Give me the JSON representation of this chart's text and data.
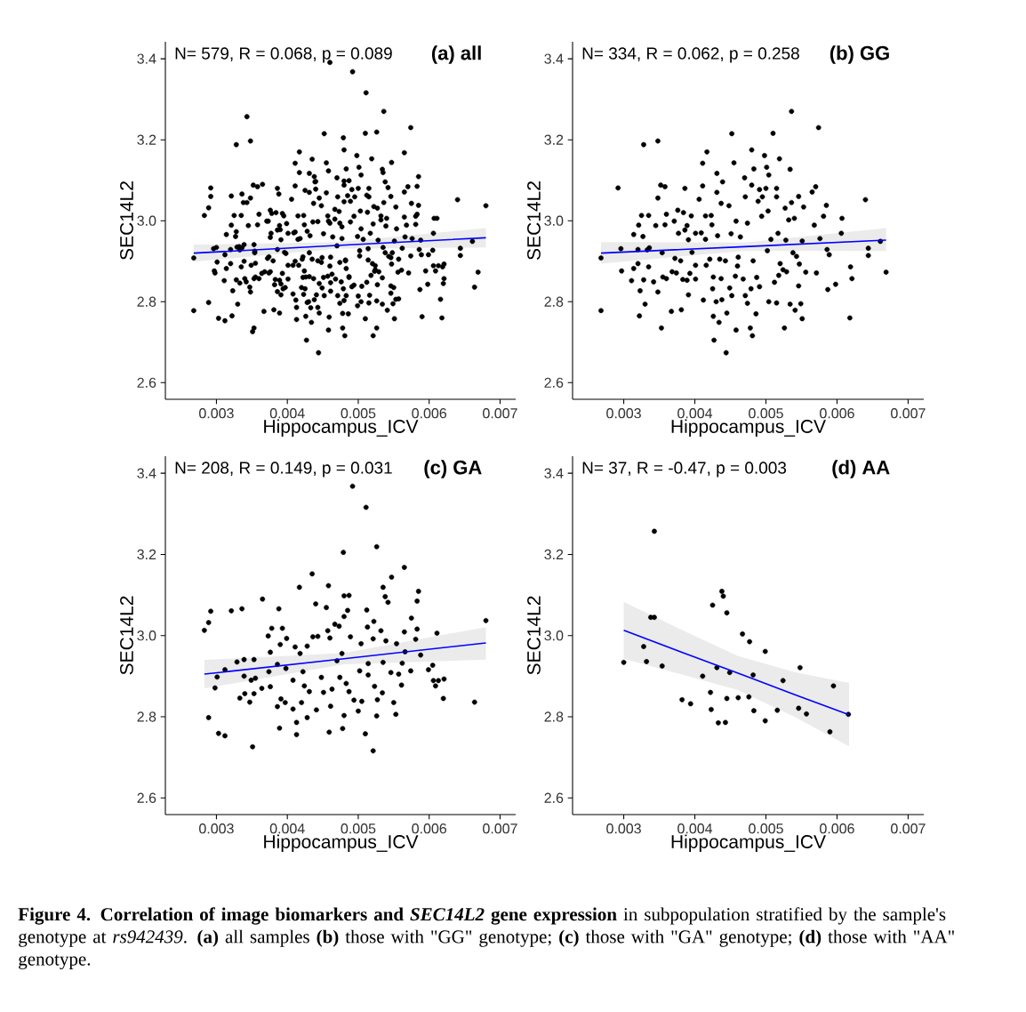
{
  "chart_data": [
    {
      "type": "scatter",
      "title": "(a) all",
      "xlabel": "Hippocampus_ICV",
      "ylabel": "SEC14L2",
      "annotations": [
        "N= 579, R = 0.068, p = 0.089"
      ],
      "marker": "circle",
      "xlim": [
        0.00228,
        0.00722
      ],
      "ylim": [
        2.559,
        3.442
      ],
      "xticks": [
        {
          "value": 0.003,
          "label": "0.003"
        },
        {
          "value": 0.004,
          "label": "0.004"
        },
        {
          "value": 0.005,
          "label": "0.005"
        },
        {
          "value": 0.006,
          "label": "0.006"
        },
        {
          "value": 0.007,
          "label": "0.007"
        }
      ],
      "yticks": [
        {
          "value": 2.6,
          "label": "2.6"
        },
        {
          "value": 2.8,
          "label": "2.8"
        },
        {
          "value": 3.0,
          "label": "3.0"
        },
        {
          "value": 3.2,
          "label": "3.2"
        },
        {
          "value": 3.4,
          "label": "3.4"
        }
      ],
      "series": [
        {
          "type": "scatter",
          "color": "#000000",
          "x": [
            0.00268,
            0.00268,
            0.00292,
            0.00296,
            0.00297,
            0.00311,
            0.00314,
            0.00314,
            0.0032,
            0.0032,
            0.00321,
            0.00322,
            0.00323,
            0.00325,
            0.00327,
            0.00328,
            0.00328,
            0.0033,
            0.00333,
            0.00335,
            0.00335,
            0.00336,
            0.00342,
            0.00345,
            0.00348,
            0.00348,
            0.00348,
            0.00352,
            0.00353,
            0.00354,
            0.00355,
            0.00358,
            0.00358,
            0.0036,
            0.0036,
            0.00367,
            0.00368,
            0.00371,
            0.00372,
            0.00374,
            0.00376,
            0.00377,
            0.0038,
            0.00381,
            0.00383,
            0.00384,
            0.00386,
            0.00386,
            0.00389,
            0.00389,
            0.00391,
            0.00391,
            0.00393,
            0.00395,
            0.00396,
            0.00401,
            0.00401,
            0.00401,
            0.00406,
            0.00409,
            0.00411,
            0.00411,
            0.00412,
            0.00415,
            0.00415,
            0.00416,
            0.00417,
            0.00421,
            0.00423,
            0.00424,
            0.00425,
            0.00426,
            0.00426,
            0.00427,
            0.0043,
            0.00431,
            0.00431,
            0.00432,
            0.00434,
            0.00435,
            0.00437,
            0.00437,
            0.00438,
            0.00439,
            0.00443,
            0.00444,
            0.00445,
            0.00448,
            0.00449,
            0.00451,
            0.00452,
            0.00452,
            0.00455,
            0.00457,
            0.00458,
            0.00458,
            0.0046,
            0.00461,
            0.00464,
            0.00468,
            0.0047,
            0.00471,
            0.00471,
            0.00474,
            0.00474,
            0.00478,
            0.00479,
            0.0048,
            0.0048,
            0.00481,
            0.00482,
            0.00483,
            0.00486,
            0.00487,
            0.00489,
            0.00491,
            0.00491,
            0.00494,
            0.00495,
            0.00498,
            0.005,
            0.00501,
            0.00502,
            0.00503,
            0.00504,
            0.00504,
            0.00507,
            0.0051,
            0.00512,
            0.00515,
            0.00515,
            0.00515,
            0.00517,
            0.00518,
            0.00519,
            0.0052,
            0.00524,
            0.00526,
            0.00527,
            0.00528,
            0.00529,
            0.00532,
            0.00534,
            0.00534,
            0.00536,
            0.00536,
            0.00538,
            0.0054,
            0.00541,
            0.00543,
            0.00546,
            0.00546,
            0.00547,
            0.00549,
            0.00551,
            0.00551,
            0.00553,
            0.00556,
            0.00565,
            0.00568,
            0.0057,
            0.00571,
            0.00574,
            0.00576,
            0.00581,
            0.00585,
            0.00586,
            0.00587,
            0.00589,
            0.00598,
            0.00606,
            0.00607,
            0.00619,
            0.00618,
            0.00621,
            0.0064,
            0.00644,
            0.00644,
            0.00661,
            0.00669,
            0.00283,
            0.00289,
            0.00292,
            0.00289,
            0.00298,
            0.00301,
            0.00303,
            0.00312,
            0.00312,
            0.00321,
            0.00329,
            0.00333,
            0.00336,
            0.00339,
            0.00339,
            0.0034,
            0.00347,
            0.00349,
            0.00351,
            0.00353,
            0.00353,
            0.00355,
            0.00364,
            0.00365,
            0.00373,
            0.00374,
            0.00376,
            0.00376,
            0.00378,
            0.00386,
            0.00386,
            0.00388,
            0.00389,
            0.00391,
            0.0039,
            0.00393,
            0.00398,
            0.00397,
            0.00399,
            0.00408,
            0.00408,
            0.00411,
            0.00413,
            0.00413,
            0.00417,
            0.00418,
            0.0042,
            0.00422,
            0.00424,
            0.00428,
            0.00428,
            0.00431,
            0.00435,
            0.00436,
            0.0044,
            0.00441,
            0.00443,
            0.00448,
            0.00451,
            0.00455,
            0.00457,
            0.00458,
            0.00459,
            0.0046,
            0.00461,
            0.00463,
            0.00467,
            0.0047,
            0.00473,
            0.00474,
            0.00477,
            0.00478,
            0.00479,
            0.0048,
            0.0048,
            0.0048,
            0.00483,
            0.00485,
            0.00487,
            0.00487,
            0.00489,
            0.00492,
            0.00494,
            0.005,
            0.00502,
            0.00504,
            0.00505,
            0.0051,
            0.00511,
            0.00512,
            0.00513,
            0.00514,
            0.00514,
            0.00521,
            0.00521,
            0.00522,
            0.00523,
            0.00526,
            0.00526,
            0.00527,
            0.00532,
            0.00534,
            0.00535,
            0.00535,
            0.00538,
            0.00539,
            0.00542,
            0.00546,
            0.00547,
            0.0055,
            0.00553,
            0.00554,
            0.00557,
            0.00561,
            0.00562,
            0.00565,
            0.00565,
            0.00566,
            0.00574,
            0.00575,
            0.00581,
            0.00583,
            0.00583,
            0.00585,
            0.00588,
            0.00599,
            0.00605,
            0.00606,
            0.00609,
            0.00611,
            0.00613,
            0.0062,
            0.00621,
            0.00664,
            0.0068,
            0.003,
            0.00328,
            0.00332,
            0.00338,
            0.00343,
            0.00343,
            0.00354,
            0.00382,
            0.00394,
            0.00411,
            0.00422,
            0.00423,
            0.00425,
            0.00431,
            0.00433,
            0.00438,
            0.0044,
            0.00443,
            0.00445,
            0.00445,
            0.00449,
            0.00461,
            0.00467,
            0.00476,
            0.00477,
            0.00482,
            0.00483,
            0.00499,
            0.00499,
            0.00516,
            0.00524,
            0.00546,
            0.00548,
            0.00557,
            0.0059,
            0.00595,
            0.00616,
            0.0046
          ],
          "values": [
            2.908,
            2.778,
            3.081,
            2.931,
            2.876,
            2.852,
            2.966,
            2.882,
            2.929,
            2.894,
            2.989,
            2.765,
            2.827,
            3.013,
            2.961,
            3.188,
            2.854,
            2.794,
            2.928,
            3.013,
            2.886,
            2.933,
            2.849,
            2.988,
            3.056,
            3.197,
            2.824,
            3.088,
            2.735,
            2.921,
            2.861,
            3.084,
            2.99,
            3.016,
            2.857,
            2.776,
            2.874,
            2.999,
            2.907,
            2.871,
            3.026,
            2.969,
            2.901,
            2.78,
            2.855,
            3.02,
            2.977,
            3.08,
            2.853,
            2.988,
            2.817,
            2.953,
            2.87,
            3.012,
            2.922,
            2.89,
            2.856,
            2.969,
            3.053,
            2.97,
            3.086,
            3.142,
            2.804,
            3.012,
            2.954,
            2.89,
            3.17,
            2.905,
            3.013,
            2.99,
            2.832,
            2.861,
            2.764,
            2.705,
            2.8,
            3.117,
            3.07,
            2.963,
            2.749,
            2.905,
            3.043,
            2.857,
            2.805,
            3.096,
            2.901,
            2.674,
            2.772,
            3.037,
            2.834,
            2.968,
            2.815,
            3.215,
            3.143,
            2.863,
            2.73,
            2.999,
            2.888,
            2.91,
            2.96,
            2.856,
            3.106,
            3.059,
            2.815,
            2.994,
            2.796,
            2.735,
            2.832,
            3.175,
            3.088,
            2.716,
            2.901,
            3.128,
            2.77,
            2.86,
            3.048,
            3.077,
            2.837,
            3.011,
            3.059,
            3.161,
            3.08,
            3.132,
            2.926,
            3.024,
            2.8,
            3.113,
            2.954,
            3.216,
            2.848,
            3.08,
            2.797,
            3.059,
            2.969,
            2.865,
            3.153,
            2.894,
            2.879,
            2.735,
            3.031,
            2.952,
            2.874,
            3.002,
            3.127,
            2.794,
            3.27,
            3.045,
            2.921,
            3.006,
            2.779,
            2.912,
            3.06,
            2.839,
            2.893,
            2.795,
            2.758,
            2.95,
            3.034,
            2.873,
            3.071,
            2.989,
            3.084,
            2.871,
            3.23,
            2.956,
            3.011,
            3.038,
            2.929,
            2.83,
            2.916,
            2.843,
            2.969,
            3.006,
            2.886,
            2.76,
            2.857,
            3.052,
            2.932,
            2.914,
            2.949,
            2.873,
            3.013,
            3.032,
            3.06,
            2.798,
            2.871,
            2.898,
            2.759,
            2.753,
            2.916,
            3.061,
            2.935,
            2.846,
            3.066,
            2.941,
            2.9,
            2.857,
            2.836,
            2.89,
            2.726,
            2.941,
            2.857,
            2.895,
            2.87,
            3.09,
            2.999,
            2.911,
            2.874,
            2.959,
            3.018,
            2.929,
            2.825,
            3.066,
            2.772,
            2.844,
            2.978,
            3.018,
            2.919,
            2.835,
            2.993,
            2.819,
            2.89,
            2.972,
            2.786,
            2.756,
            3.119,
            2.956,
            2.835,
            2.911,
            2.876,
            2.974,
            2.798,
            2.862,
            3.152,
            2.997,
            3.078,
            2.817,
            2.998,
            2.897,
            2.86,
            3.069,
            3.012,
            3.123,
            2.762,
            2.994,
            2.826,
            2.868,
            3.028,
            2.938,
            3.023,
            2.897,
            2.956,
            2.771,
            3.205,
            3.098,
            2.803,
            3.047,
            2.882,
            3.062,
            3.099,
            2.862,
            2.997,
            3.368,
            2.841,
            2.814,
            2.913,
            2.98,
            2.838,
            2.758,
            3.316,
            3.063,
            3.021,
            2.931,
            2.903,
            2.716,
            2.992,
            3.035,
            2.875,
            3.219,
            2.802,
            2.842,
            3.012,
            2.859,
            3.119,
            2.934,
            3.096,
            2.987,
            3.082,
            2.909,
            3.144,
            2.835,
            2.806,
            2.98,
            2.905,
            2.878,
            2.932,
            3.168,
            3.009,
            2.96,
            2.913,
            3.043,
            2.991,
            3.085,
            3.016,
            3.109,
            2.952,
            2.916,
            2.927,
            2.889,
            2.876,
            3.006,
            2.889,
            2.845,
            2.893,
            2.836,
            3.037,
            2.934,
            2.973,
            2.936,
            3.045,
            3.045,
            3.257,
            2.925,
            2.842,
            2.832,
            2.9,
            2.86,
            2.818,
            3.075,
            2.921,
            2.785,
            3.109,
            3.097,
            2.786,
            3.056,
            2.845,
            2.909,
            2.847,
            3.004,
            2.849,
            2.985,
            2.903,
            2.815,
            2.961,
            2.79,
            2.816,
            2.889,
            2.821,
            2.921,
            2.807,
            2.763,
            2.876,
            2.806,
            3.391
          ]
        },
        {
          "type": "line",
          "marker": "none",
          "color": "#0000ff",
          "x": [
            0.00268,
            0.0047,
            0.0068
          ],
          "values": [
            2.92,
            2.939,
            2.958
          ],
          "lower": [
            2.899,
            2.931,
            2.934
          ],
          "upper": [
            2.941,
            2.947,
            2.982
          ]
        }
      ]
    },
    {
      "type": "scatter",
      "title": "(b) GG",
      "xlabel": "Hippocampus_ICV",
      "ylabel": "SEC14L2",
      "annotations": [
        "N= 334, R = 0.062, p = 0.258"
      ],
      "marker": "circle",
      "xlim": [
        0.00228,
        0.00722
      ],
      "ylim": [
        2.559,
        3.442
      ],
      "xticks": [
        {
          "value": 0.003,
          "label": "0.003"
        },
        {
          "value": 0.004,
          "label": "0.004"
        },
        {
          "value": 0.005,
          "label": "0.005"
        },
        {
          "value": 0.006,
          "label": "0.006"
        },
        {
          "value": 0.007,
          "label": "0.007"
        }
      ],
      "yticks": [
        {
          "value": 2.6,
          "label": "2.6"
        },
        {
          "value": 2.8,
          "label": "2.8"
        },
        {
          "value": 3.0,
          "label": "3.0"
        },
        {
          "value": 3.2,
          "label": "3.2"
        },
        {
          "value": 3.4,
          "label": "3.4"
        }
      ],
      "series": [
        {
          "type": "scatter",
          "color": "#000000",
          "x": [
            0.00268,
            0.00268,
            0.00292,
            0.00296,
            0.00297,
            0.00311,
            0.00314,
            0.00314,
            0.0032,
            0.0032,
            0.00321,
            0.00322,
            0.00323,
            0.00325,
            0.00327,
            0.00328,
            0.00328,
            0.0033,
            0.00333,
            0.00335,
            0.00335,
            0.00336,
            0.00342,
            0.00345,
            0.00348,
            0.00348,
            0.00348,
            0.00352,
            0.00353,
            0.00354,
            0.00355,
            0.00358,
            0.00358,
            0.0036,
            0.0036,
            0.00367,
            0.00368,
            0.00371,
            0.00372,
            0.00374,
            0.00376,
            0.00377,
            0.0038,
            0.00381,
            0.00383,
            0.00384,
            0.00386,
            0.00386,
            0.00389,
            0.00389,
            0.00391,
            0.00391,
            0.00393,
            0.00395,
            0.00396,
            0.00401,
            0.00401,
            0.00401,
            0.00406,
            0.00409,
            0.00411,
            0.00411,
            0.00412,
            0.00415,
            0.00415,
            0.00416,
            0.00417,
            0.00421,
            0.00423,
            0.00424,
            0.00425,
            0.00426,
            0.00426,
            0.00427,
            0.0043,
            0.00431,
            0.00431,
            0.00432,
            0.00434,
            0.00435,
            0.00437,
            0.00437,
            0.00438,
            0.00439,
            0.00443,
            0.00444,
            0.00445,
            0.00448,
            0.00449,
            0.00451,
            0.00452,
            0.00452,
            0.00455,
            0.00457,
            0.00458,
            0.00458,
            0.0046,
            0.00461,
            0.00464,
            0.00468,
            0.0047,
            0.00471,
            0.00471,
            0.00474,
            0.00474,
            0.00478,
            0.00479,
            0.0048,
            0.0048,
            0.00481,
            0.00482,
            0.00483,
            0.00486,
            0.00487,
            0.00489,
            0.00491,
            0.00491,
            0.00494,
            0.00495,
            0.00498,
            0.005,
            0.00501,
            0.00502,
            0.00503,
            0.00504,
            0.00504,
            0.00507,
            0.0051,
            0.00512,
            0.00515,
            0.00515,
            0.00515,
            0.00517,
            0.00518,
            0.00519,
            0.0052,
            0.00524,
            0.00526,
            0.00527,
            0.00528,
            0.00529,
            0.00532,
            0.00534,
            0.00534,
            0.00536,
            0.00536,
            0.00538,
            0.0054,
            0.00541,
            0.00543,
            0.00546,
            0.00546,
            0.00547,
            0.00549,
            0.00551,
            0.00551,
            0.00553,
            0.00556,
            0.00565,
            0.00568,
            0.0057,
            0.00571,
            0.00574,
            0.00576,
            0.00581,
            0.00585,
            0.00586,
            0.00587,
            0.00589,
            0.00598,
            0.00606,
            0.00607,
            0.00619,
            0.00618,
            0.00621,
            0.0064,
            0.00644,
            0.00644,
            0.00661,
            0.00669
          ],
          "values": [
            2.908,
            2.778,
            3.081,
            2.931,
            2.876,
            2.852,
            2.966,
            2.882,
            2.929,
            2.894,
            2.989,
            2.765,
            2.827,
            3.013,
            2.961,
            3.188,
            2.854,
            2.794,
            2.928,
            3.013,
            2.886,
            2.933,
            2.849,
            2.988,
            3.056,
            3.197,
            2.824,
            3.088,
            2.735,
            2.921,
            2.861,
            3.084,
            2.99,
            3.016,
            2.857,
            2.776,
            2.874,
            2.999,
            2.907,
            2.871,
            3.026,
            2.969,
            2.901,
            2.78,
            2.855,
            3.02,
            2.977,
            3.08,
            2.853,
            2.988,
            2.817,
            2.953,
            2.87,
            3.012,
            2.922,
            2.89,
            2.856,
            2.969,
            3.053,
            2.97,
            3.086,
            3.142,
            2.804,
            3.012,
            2.954,
            2.89,
            3.17,
            2.905,
            3.013,
            2.99,
            2.832,
            2.861,
            2.764,
            2.705,
            2.8,
            3.117,
            3.07,
            2.963,
            2.749,
            2.905,
            3.043,
            2.857,
            2.805,
            3.096,
            2.901,
            2.674,
            2.772,
            3.037,
            2.834,
            2.968,
            2.815,
            3.215,
            3.143,
            2.863,
            2.73,
            2.999,
            2.888,
            2.91,
            2.96,
            2.856,
            3.106,
            3.059,
            2.815,
            2.994,
            2.796,
            2.735,
            2.832,
            3.175,
            3.088,
            2.716,
            2.901,
            3.128,
            2.77,
            2.86,
            3.048,
            3.077,
            2.837,
            3.011,
            3.059,
            3.161,
            3.08,
            3.132,
            2.926,
            3.024,
            2.8,
            3.113,
            2.954,
            3.216,
            2.848,
            3.08,
            2.797,
            3.059,
            2.969,
            2.865,
            3.153,
            2.894,
            2.879,
            2.735,
            3.031,
            2.952,
            2.874,
            3.002,
            3.127,
            2.794,
            3.27,
            3.045,
            2.921,
            3.006,
            2.779,
            2.912,
            3.06,
            2.839,
            2.893,
            2.795,
            2.758,
            2.95,
            3.034,
            2.873,
            3.071,
            2.989,
            3.084,
            2.871,
            3.23,
            2.956,
            3.011,
            3.038,
            2.929,
            2.83,
            2.916,
            2.843,
            2.969,
            3.006,
            2.886,
            2.76,
            2.857,
            3.052,
            2.932,
            2.914,
            2.949,
            2.873
          ]
        },
        {
          "type": "line",
          "marker": "none",
          "color": "#0000ff",
          "x": [
            0.00268,
            0.0047,
            0.00669
          ],
          "values": [
            2.92,
            2.936,
            2.952
          ],
          "lower": [
            2.894,
            2.926,
            2.925
          ],
          "upper": [
            2.947,
            2.946,
            2.982
          ]
        }
      ]
    },
    {
      "type": "scatter",
      "title": "(c) GA",
      "xlabel": "Hippocampus_ICV",
      "ylabel": "SEC14L2",
      "annotations": [
        "N= 208, R = 0.149, p = 0.031"
      ],
      "marker": "circle",
      "xlim": [
        0.00228,
        0.00722
      ],
      "ylim": [
        2.559,
        3.442
      ],
      "xticks": [
        {
          "value": 0.003,
          "label": "0.003"
        },
        {
          "value": 0.004,
          "label": "0.004"
        },
        {
          "value": 0.005,
          "label": "0.005"
        },
        {
          "value": 0.006,
          "label": "0.006"
        },
        {
          "value": 0.007,
          "label": "0.007"
        }
      ],
      "yticks": [
        {
          "value": 2.6,
          "label": "2.6"
        },
        {
          "value": 2.8,
          "label": "2.8"
        },
        {
          "value": 3.0,
          "label": "3.0"
        },
        {
          "value": 3.2,
          "label": "3.2"
        },
        {
          "value": 3.4,
          "label": "3.4"
        }
      ],
      "series": [
        {
          "type": "scatter",
          "color": "#000000",
          "x": [
            0.00283,
            0.00289,
            0.00292,
            0.00289,
            0.00298,
            0.00301,
            0.00303,
            0.00312,
            0.00312,
            0.00321,
            0.00329,
            0.00333,
            0.00336,
            0.00339,
            0.00339,
            0.0034,
            0.00347,
            0.00349,
            0.00351,
            0.00353,
            0.00353,
            0.00355,
            0.00364,
            0.00365,
            0.00373,
            0.00374,
            0.00376,
            0.00376,
            0.00378,
            0.00386,
            0.00386,
            0.00388,
            0.00389,
            0.00391,
            0.0039,
            0.00393,
            0.00398,
            0.00397,
            0.00399,
            0.00408,
            0.00408,
            0.00411,
            0.00413,
            0.00413,
            0.00417,
            0.00418,
            0.0042,
            0.00422,
            0.00424,
            0.00428,
            0.00428,
            0.00431,
            0.00435,
            0.00436,
            0.0044,
            0.00441,
            0.00443,
            0.00448,
            0.00451,
            0.00455,
            0.00457,
            0.00458,
            0.00459,
            0.0046,
            0.00461,
            0.00463,
            0.00467,
            0.0047,
            0.00473,
            0.00474,
            0.00477,
            0.00478,
            0.00479,
            0.0048,
            0.0048,
            0.0048,
            0.00483,
            0.00485,
            0.00487,
            0.00487,
            0.00489,
            0.00492,
            0.00494,
            0.005,
            0.00502,
            0.00504,
            0.00505,
            0.0051,
            0.00511,
            0.00512,
            0.00513,
            0.00514,
            0.00514,
            0.00521,
            0.00521,
            0.00522,
            0.00523,
            0.00526,
            0.00526,
            0.00527,
            0.00532,
            0.00534,
            0.00535,
            0.00535,
            0.00538,
            0.00539,
            0.00542,
            0.00546,
            0.00547,
            0.0055,
            0.00553,
            0.00554,
            0.00557,
            0.00561,
            0.00562,
            0.00565,
            0.00565,
            0.00566,
            0.00574,
            0.00575,
            0.00581,
            0.00583,
            0.00583,
            0.00585,
            0.00588,
            0.00599,
            0.00605,
            0.00606,
            0.00609,
            0.00611,
            0.00613,
            0.0062,
            0.00621,
            0.00664,
            0.0068
          ],
          "values": [
            3.013,
            3.032,
            3.06,
            2.798,
            2.871,
            2.898,
            2.759,
            2.753,
            2.916,
            3.061,
            2.935,
            2.846,
            3.066,
            2.941,
            2.9,
            2.857,
            2.836,
            2.89,
            2.726,
            2.941,
            2.857,
            2.895,
            2.87,
            3.09,
            2.999,
            2.911,
            2.874,
            2.959,
            3.018,
            2.929,
            2.825,
            3.066,
            2.772,
            2.844,
            2.978,
            3.018,
            2.919,
            2.835,
            2.993,
            2.819,
            2.89,
            2.972,
            2.786,
            2.756,
            3.119,
            2.956,
            2.835,
            2.911,
            2.876,
            2.974,
            2.798,
            2.862,
            3.152,
            2.997,
            3.078,
            2.817,
            2.998,
            2.897,
            2.86,
            3.069,
            3.012,
            3.123,
            2.762,
            2.994,
            2.826,
            2.868,
            3.028,
            2.938,
            3.023,
            2.897,
            2.956,
            2.771,
            3.205,
            3.098,
            2.803,
            3.047,
            2.882,
            3.062,
            3.099,
            2.862,
            2.997,
            3.368,
            2.841,
            2.814,
            2.913,
            2.98,
            2.838,
            2.758,
            3.316,
            3.063,
            3.021,
            2.931,
            2.903,
            2.716,
            2.992,
            3.035,
            2.875,
            3.219,
            2.802,
            2.842,
            3.012,
            2.859,
            3.119,
            2.934,
            3.096,
            2.987,
            3.082,
            2.909,
            3.144,
            2.835,
            2.806,
            2.98,
            2.905,
            2.878,
            2.932,
            3.168,
            3.009,
            2.96,
            2.913,
            3.043,
            2.991,
            3.085,
            3.016,
            3.109,
            2.952,
            2.916,
            2.927,
            2.889,
            2.876,
            3.006,
            2.889,
            2.845,
            2.893,
            2.836,
            3.037
          ]
        },
        {
          "type": "line",
          "marker": "none",
          "color": "#0000ff",
          "x": [
            0.00283,
            0.0048,
            0.0068
          ],
          "values": [
            2.905,
            2.943,
            2.982
          ],
          "lower": [
            2.87,
            2.929,
            2.941
          ],
          "upper": [
            2.94,
            2.957,
            3.021
          ]
        }
      ]
    },
    {
      "type": "scatter",
      "title": "(d) AA",
      "xlabel": "Hippocampus_ICV",
      "ylabel": "SEC14L2",
      "annotations": [
        "N= 37, R = -0.47, p = 0.003",
        "**Figure 4. Correlation of image biomarkers and *SEC14L2* gene expression** in subpopulation stratified by the sample's genotype at *rs942439*. **(a)** all samples **(b)** those with \"GG\" genotype; **(c)** those with \"GA\" genotype; **(d)** those with \"AA\" genotype."
      ],
      "marker": "circle",
      "xlim": [
        0.00228,
        0.00722
      ],
      "ylim": [
        2.559,
        3.442
      ],
      "xticks": [
        {
          "value": 0.003,
          "label": "0.003"
        },
        {
          "value": 0.004,
          "label": "0.004"
        },
        {
          "value": 0.005,
          "label": "0.005"
        },
        {
          "value": 0.006,
          "label": "0.006"
        },
        {
          "value": 0.007,
          "label": "0.007"
        }
      ],
      "yticks": [
        {
          "value": 2.6,
          "label": "2.6"
        },
        {
          "value": 2.8,
          "label": "2.8"
        },
        {
          "value": 3.0,
          "label": "3.0"
        },
        {
          "value": 3.2,
          "label": "3.2"
        },
        {
          "value": 3.4,
          "label": "3.4"
        }
      ],
      "series": [
        {
          "type": "scatter",
          "color": "#000000",
          "x": [
            0.003,
            0.00328,
            0.00332,
            0.00338,
            0.00343,
            0.00343,
            0.00354,
            0.00382,
            0.00394,
            0.00411,
            0.00422,
            0.00423,
            0.00425,
            0.00431,
            0.00433,
            0.00438,
            0.0044,
            0.00443,
            0.00445,
            0.00445,
            0.00449,
            0.00461,
            0.00467,
            0.00476,
            0.00477,
            0.00482,
            0.00483,
            0.00499,
            0.00499,
            0.00516,
            0.00524,
            0.00546,
            0.00548,
            0.00557,
            0.0059,
            0.00595,
            0.00616
          ],
          "values": [
            2.934,
            2.973,
            2.936,
            3.045,
            3.045,
            3.257,
            2.925,
            2.842,
            2.832,
            2.9,
            2.86,
            2.818,
            3.075,
            2.921,
            2.785,
            3.109,
            3.097,
            2.786,
            3.056,
            2.845,
            2.909,
            2.847,
            3.004,
            2.849,
            2.985,
            2.903,
            2.815,
            2.961,
            2.79,
            2.816,
            2.889,
            2.821,
            2.921,
            2.807,
            2.763,
            2.876,
            2.806
          ]
        },
        {
          "type": "line",
          "marker": "none",
          "color": "#0000ff",
          "x": [
            0.003,
            0.0038,
            0.0046,
            0.0054,
            0.00617
          ],
          "values": [
            3.013,
            2.96,
            2.908,
            2.855,
            2.805
          ],
          "lower": [
            2.943,
            2.905,
            2.866,
            2.8,
            2.727
          ],
          "upper": [
            3.083,
            3.015,
            2.95,
            2.91,
            2.883
          ]
        }
      ]
    }
  ]
}
